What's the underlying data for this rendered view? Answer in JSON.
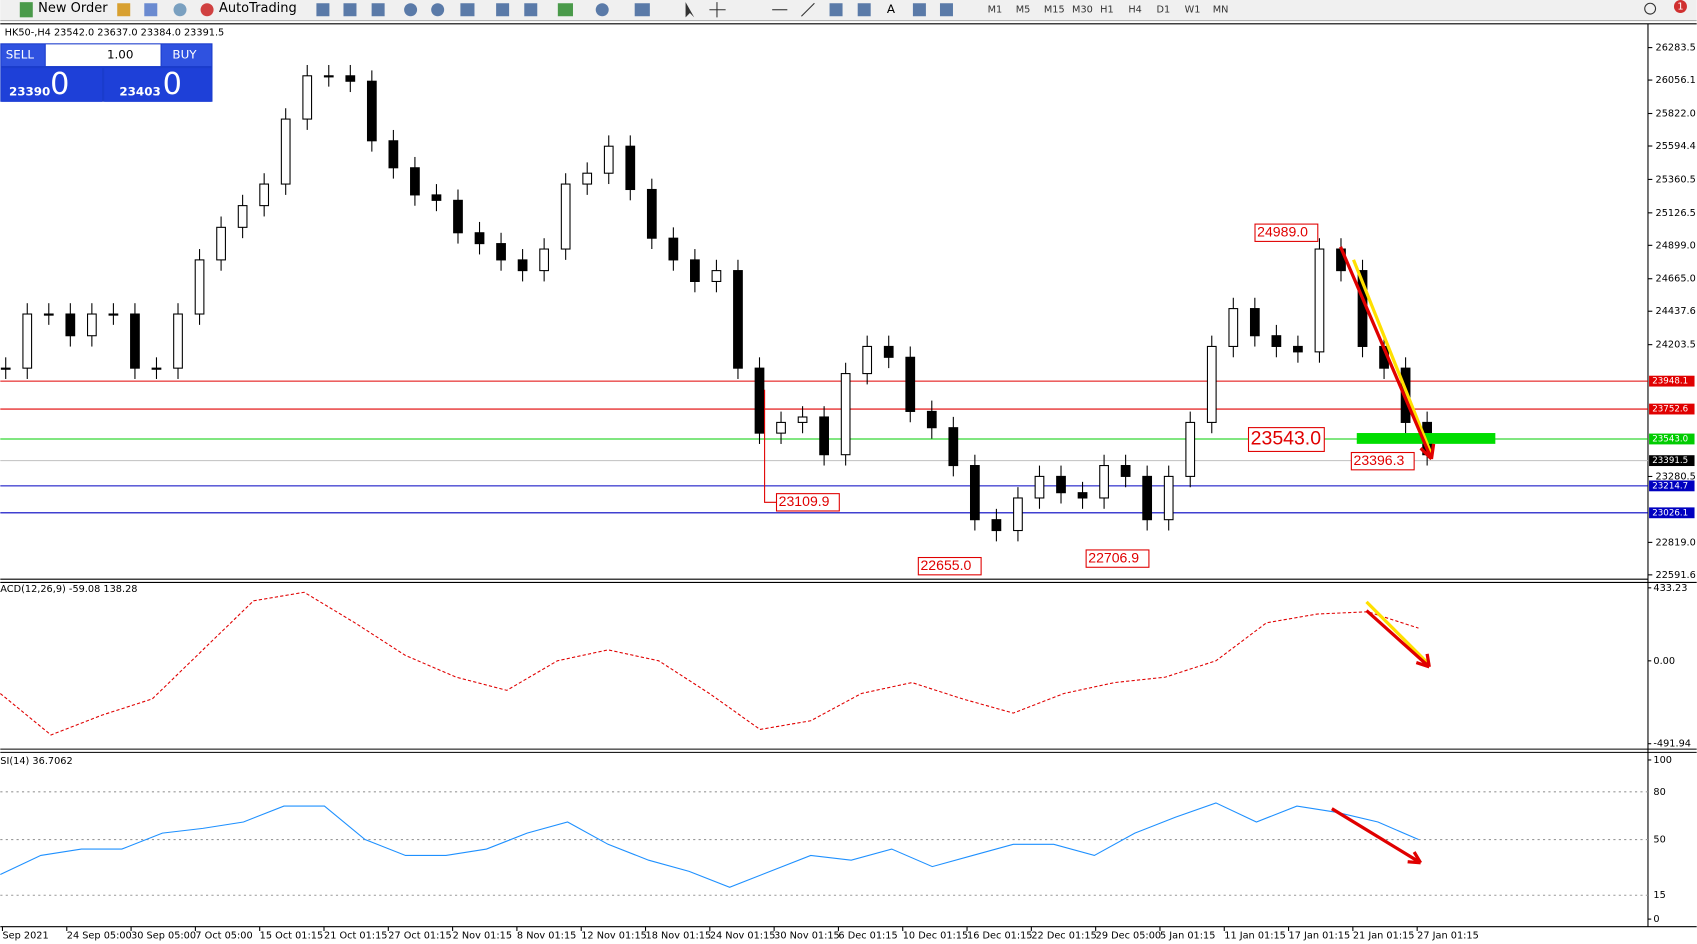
{
  "toolbar": {
    "new_order": "New Order",
    "autotrading": "AutoTrading",
    "timeframes": [
      "M1",
      "M5",
      "M15",
      "M30",
      "H1",
      "H4",
      "D1",
      "W1",
      "MN"
    ],
    "alerts": "1"
  },
  "chart_header": "HK50-,H4  23542.0 23637.0 23384.0 23391.5",
  "trade_panel": {
    "sell": "SELL",
    "buy": "BUY",
    "volume": "1.00",
    "bid": "23390",
    "bid_big": "0",
    "ask": "23403",
    "ask_big": "0"
  },
  "price_chart": {
    "ylim": [
      22569,
      26450
    ],
    "yticks": [
      26283.5,
      26056.1,
      {
        "value": 25822,
        "label": "25822.0"
      },
      25594.4,
      25360.5,
      25126.5,
      {
        "value": 24899,
        "label": "24899.0"
      },
      {
        "value": 24665,
        "label": "24665.0"
      },
      24437.6,
      24203.5,
      23280.5,
      {
        "value": 22819,
        "label": "22819.0"
      },
      22591.6
    ],
    "levels": [
      {
        "value": 23948.1,
        "color": "#e00000"
      },
      {
        "value": 23752.6,
        "color": "#e00000"
      },
      {
        "value": 23543,
        "label": "23543.0",
        "color": "#00cc00"
      },
      {
        "value": 23391.5,
        "color": "#000000"
      },
      {
        "value": 23214.7,
        "color": "#0000c0"
      },
      {
        "value": 23026.1,
        "color": "#0000c0"
      }
    ],
    "closes": [
      24039,
      24418,
      24418,
      24266,
      24418,
      24418,
      24039,
      24039,
      24418,
      24797,
      25025,
      25177,
      25328,
      25783,
      26086,
      26086,
      26048,
      25631,
      25442,
      25252,
      25214,
      24987,
      24911,
      24797,
      24722,
      24873,
      25328,
      25404,
      25593,
      25290,
      24949,
      24797,
      24646,
      24722,
      24039,
      23584,
      23659,
      23697,
      23433,
      24001,
      24191,
      24115,
      23736,
      23622,
      23357,
      22978,
      22902,
      23130,
      23281,
      23167,
      23130,
      23357,
      23281,
      22978,
      23281,
      23659,
      24191,
      24456,
      24266,
      24191,
      24153,
      24873,
      24722,
      24191,
      24039,
      23659,
      23433
    ],
    "annotations": [
      "24989.0",
      "23543.0",
      "23396.3",
      "23109.9",
      "22655.0",
      "22706.9"
    ]
  },
  "macd": {
    "header": "ACD(12,26,9) -59.08 138.28",
    "ylim": [
      -491.94,
      433.23
    ],
    "yticks": [
      433.23,
      {
        "value": 0,
        "label": "0.00"
      },
      -491.94
    ],
    "signal": [
      -194,
      -440,
      -323,
      -226,
      65,
      356,
      407,
      226,
      32,
      -97,
      -175,
      0,
      65,
      0,
      -194,
      -407,
      -356,
      -194,
      -129,
      -226,
      -310,
      -194,
      -129,
      -97,
      0,
      226,
      278,
      291,
      194
    ]
  },
  "rsi": {
    "header": "SI(14) 36.7062",
    "ylim": [
      0,
      100
    ],
    "yticks": [
      100,
      80,
      50,
      15,
      0
    ],
    "values": [
      28,
      40,
      44,
      44,
      54,
      57,
      61,
      71,
      71,
      50,
      40,
      40,
      44,
      54,
      61,
      47,
      37,
      30,
      20,
      30,
      40,
      37,
      44,
      33,
      40,
      47,
      47,
      40,
      54,
      64,
      73,
      61,
      71,
      67,
      61,
      50
    ]
  },
  "x_labels": [
    "Sep 2021",
    "24 Sep 05:00",
    "30 Sep 05:00",
    "7 Oct 05:00",
    "15 Oct 01:15",
    "21 Oct 01:15",
    "27 Oct 01:15",
    "2 Nov 01:15",
    "8 Nov 01:15",
    "12 Nov 01:15",
    "18 Nov 01:15",
    "24 Nov 01:15",
    "30 Nov 01:15",
    "6 Dec 01:15",
    "10 Dec 01:15",
    "16 Dec 01:15",
    "22 Dec 01:15",
    "29 Dec 05:00",
    "5 Jan 01:15",
    "11 Jan 01:15",
    "17 Jan 01:15",
    "21 Jan 01:15",
    "27 Jan 01:15"
  ]
}
